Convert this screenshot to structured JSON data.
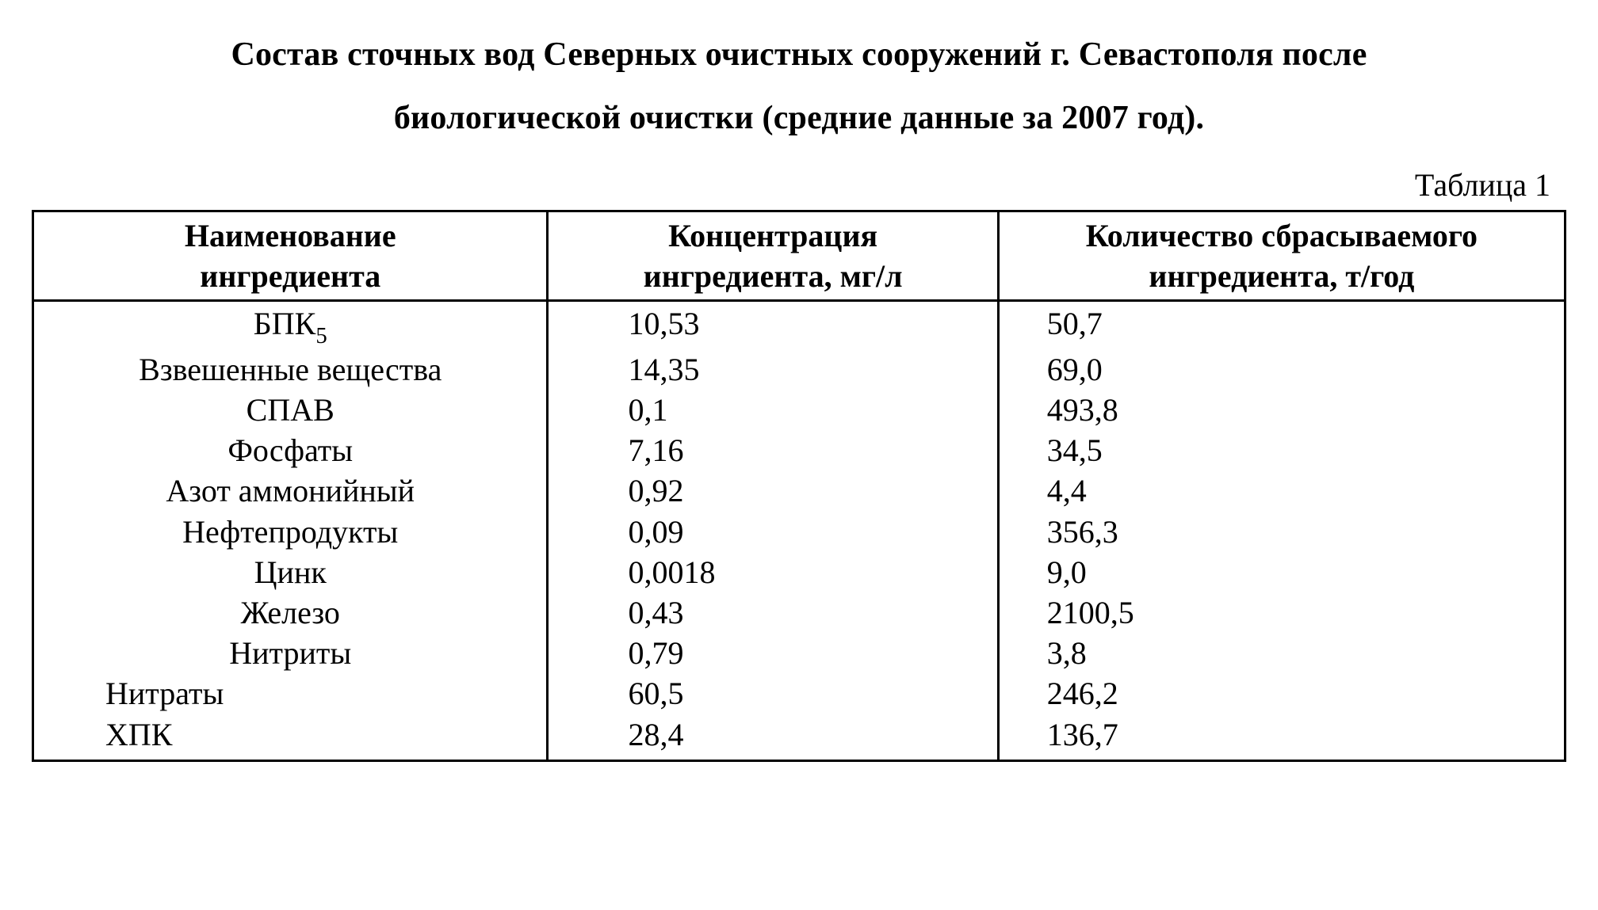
{
  "title_line1": "Состав сточных вод Северных очистных сооружений г. Севастополя после",
  "title_line2": "биологической очистки (средние данные за 2007 год).",
  "table_label": "Таблица 1",
  "table": {
    "type": "table",
    "background_color": "#ffffff",
    "border_color": "#000000",
    "font_size_pt": 30,
    "font_family": "Times New Roman",
    "columns": [
      {
        "header_line1": "Наименование",
        "header_line2": "ингредиента",
        "align": "center",
        "width_ratio": 0.336
      },
      {
        "header_line1": "Концентрация",
        "header_line2": "ингредиента, мг/л",
        "align": "left",
        "width_ratio": 0.294
      },
      {
        "header_line1": "Количество сбрасываемого",
        "header_line2": "ингредиента, т/год",
        "align": "left",
        "width_ratio": 0.37
      }
    ],
    "rows": [
      {
        "name_prefix": "БПК",
        "name_sub": "5",
        "name_left": false,
        "conc": "10,53",
        "amount": "50,7"
      },
      {
        "name": "Взвешенные вещества",
        "name_left": false,
        "conc": "14,35",
        "amount": "69,0"
      },
      {
        "name": "СПАВ",
        "name_left": false,
        "conc": "0,1",
        "amount": "493,8"
      },
      {
        "name": "Фосфаты",
        "name_left": false,
        "conc": "7,16",
        "amount": "34,5"
      },
      {
        "name": "Азот аммонийный",
        "name_left": false,
        "conc": "0,92",
        "amount": "4,4"
      },
      {
        "name": "Нефтепродукты",
        "name_left": false,
        "conc": "0,09",
        "amount": "356,3"
      },
      {
        "name": "Цинк",
        "name_left": false,
        "conc": "0,0018",
        "amount": "9,0"
      },
      {
        "name": "Железо",
        "name_left": false,
        "conc": "0,43",
        "amount": "2100,5"
      },
      {
        "name": "Нитриты",
        "name_left": false,
        "conc": "0,79",
        "amount": "3,8"
      },
      {
        "name": "Нитраты",
        "name_left": true,
        "conc": "60,5",
        "amount": "246,2"
      },
      {
        "name": "ХПК",
        "name_left": true,
        "conc": "28,4",
        "amount": "136,7"
      }
    ]
  }
}
